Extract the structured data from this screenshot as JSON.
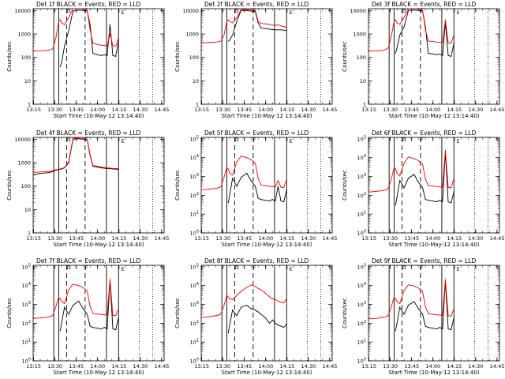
{
  "common": {
    "xlabel": "Start Time (10-May-12 13:14:40)",
    "ylabel": "Counts/sec",
    "x_ticks": [
      "13:15",
      "13:30",
      "13:45",
      "14:00",
      "14:15",
      "14:30",
      "14:45"
    ],
    "x_tick_minutes": [
      0.33,
      15.33,
      30.33,
      45.33,
      60.33,
      75.33,
      90.33
    ],
    "xlim_minutes": [
      0,
      92
    ],
    "markers_solid_minutes": [
      14.5,
      18.0,
      51.5,
      60.0
    ],
    "markers_dashed_minutes": [
      23.5,
      36.5
    ],
    "markers_dotted_minutes": [
      74.5,
      84.0
    ],
    "series_colors": {
      "events": "#000000",
      "lld": "#ff0000"
    },
    "overlay_letter_1": "D",
    "overlay_letter_2": "F",
    "overlay_letter_3": "E"
  },
  "chart_data": [
    {
      "type": "line",
      "title": "Det 1f  BLACK = Events, RED = LLD",
      "ylim": [
        1,
        12000
      ],
      "yscale": "log",
      "y_ticks": [
        "1",
        "10",
        "100",
        "1000",
        "10000"
      ],
      "y_tick_values": [
        1,
        10,
        100,
        1000,
        10000
      ],
      "x": [
        0,
        5,
        10,
        13,
        14,
        16,
        18,
        19,
        20,
        22,
        25,
        28,
        32,
        35,
        38,
        40,
        42,
        45,
        48,
        50,
        52,
        54,
        56,
        58,
        60
      ],
      "series": [
        {
          "name": "BLACK = Events",
          "values": [
            null,
            null,
            null,
            null,
            null,
            null,
            null,
            40,
            60,
            300,
            1400,
            9500,
            10500,
            10000,
            9500,
            2500,
            150,
            130,
            120,
            130,
            120,
            2500,
            120,
            110,
            500
          ]
        },
        {
          "name": "RED = LLD",
          "values": [
            180,
            190,
            200,
            220,
            250,
            700,
            3500,
            4000,
            3000,
            2500,
            5000,
            12000,
            12000,
            11500,
            10000,
            1500,
            400,
            360,
            330,
            320,
            300,
            1000,
            320,
            300,
            700
          ]
        }
      ]
    },
    {
      "type": "line",
      "title": "Det 2f  BLACK = Events, RED = LLD",
      "ylim": [
        1,
        12000
      ],
      "yscale": "log",
      "y_ticks": [
        "1",
        "10",
        "100",
        "1000",
        "10000"
      ],
      "y_tick_values": [
        1,
        10,
        100,
        1000,
        10000
      ],
      "x": [
        0,
        5,
        10,
        13,
        14,
        16,
        18,
        19,
        20,
        22,
        25,
        28,
        32,
        35,
        38,
        40,
        42,
        45,
        48,
        50,
        52,
        54,
        56,
        58,
        60
      ],
      "series": [
        {
          "name": "BLACK = Events",
          "values": [
            null,
            null,
            null,
            null,
            null,
            null,
            null,
            500,
            550,
            900,
            3500,
            10000,
            10000,
            9500,
            9000,
            3000,
            1800,
            1700,
            1600,
            1550,
            1500,
            1500,
            1500,
            1450,
            1400
          ]
        },
        {
          "name": "RED = LLD",
          "values": [
            420,
            430,
            450,
            470,
            500,
            900,
            3500,
            4000,
            3500,
            3000,
            5000,
            11000,
            11000,
            10500,
            10000,
            3500,
            2800,
            2700,
            2500,
            2400,
            2300,
            2500,
            2200,
            2100,
            1800
          ]
        }
      ]
    },
    {
      "type": "line",
      "title": "Det 3f  BLACK = Events, RED = LLD",
      "ylim": [
        1,
        12000
      ],
      "yscale": "log",
      "y_ticks": [
        "1",
        "10",
        "100",
        "1000",
        "10000"
      ],
      "y_tick_values": [
        1,
        10,
        100,
        1000,
        10000
      ],
      "x": [
        0,
        5,
        10,
        13,
        14,
        16,
        18,
        19,
        20,
        22,
        25,
        28,
        32,
        35,
        38,
        40,
        42,
        45,
        48,
        50,
        52,
        54,
        56,
        58,
        60
      ],
      "series": [
        {
          "name": "BLACK = Events",
          "values": [
            null,
            null,
            null,
            null,
            null,
            null,
            null,
            150,
            250,
            900,
            2000,
            10000,
            10500,
            10000,
            9500,
            2000,
            150,
            140,
            130,
            140,
            120,
            3000,
            120,
            110,
            400
          ]
        },
        {
          "name": "RED = LLD",
          "values": [
            180,
            190,
            200,
            230,
            260,
            800,
            3500,
            4000,
            3000,
            2600,
            5000,
            12000,
            12000,
            11500,
            10000,
            1500,
            500,
            480,
            450,
            440,
            420,
            4000,
            420,
            400,
            900
          ]
        }
      ]
    },
    {
      "type": "line",
      "title": "Det 4f  BLACK = Events, RED = LLD",
      "ylim": [
        1,
        12000
      ],
      "yscale": "log",
      "y_ticks": [
        "1",
        "10",
        "100",
        "1000",
        "10000"
      ],
      "y_tick_values": [
        1,
        10,
        100,
        1000,
        10000
      ],
      "x": [
        0,
        5,
        10,
        13,
        14,
        16,
        18,
        19,
        20,
        22,
        25,
        28,
        32,
        35,
        38,
        40,
        42,
        45,
        48,
        50,
        52,
        54,
        56,
        58,
        60
      ],
      "series": [
        {
          "name": "BLACK = Events",
          "values": [
            300,
            350,
            370,
            400,
            420,
            480,
            500,
            520,
            540,
            600,
            1000,
            10000,
            10500,
            10000,
            9500,
            2000,
            700,
            650,
            600,
            580,
            560,
            550,
            540,
            530,
            520
          ]
        },
        {
          "name": "RED = LLD",
          "values": [
            380,
            400,
            420,
            440,
            460,
            500,
            520,
            540,
            560,
            620,
            1100,
            11000,
            11000,
            10500,
            10000,
            2200,
            750,
            700,
            650,
            620,
            600,
            580,
            570,
            560,
            550
          ]
        }
      ]
    },
    {
      "type": "line",
      "title": "Det 5f  BLACK = Events, RED = LLD",
      "ylim": [
        1,
        120000
      ],
      "yscale": "log",
      "y_ticks": [
        "10^0",
        "10^1",
        "10^2",
        "10^3",
        "10^4",
        "10^5"
      ],
      "y_tick_values": [
        1,
        10,
        100,
        1000,
        10000,
        100000
      ],
      "x": [
        0,
        5,
        10,
        13,
        14,
        16,
        18,
        19,
        20,
        22,
        25,
        28,
        32,
        35,
        38,
        40,
        42,
        45,
        48,
        50,
        52,
        54,
        56,
        58,
        60
      ],
      "series": [
        {
          "name": "BLACK = Events",
          "values": [
            null,
            null,
            null,
            null,
            null,
            null,
            null,
            40,
            100,
            800,
            300,
            900,
            1500,
            600,
            300,
            70,
            60,
            55,
            50,
            60,
            50,
            300,
            50,
            45,
            200
          ]
        },
        {
          "name": "RED = LLD",
          "values": [
            200,
            210,
            230,
            260,
            300,
            900,
            3000,
            2500,
            1500,
            1200,
            6000,
            12000,
            10000,
            8000,
            5000,
            800,
            350,
            330,
            300,
            290,
            280,
            600,
            270,
            260,
            700
          ]
        }
      ]
    },
    {
      "type": "line",
      "title": "Det 6f  BLACK = Events, RED = LLD",
      "ylim": [
        1,
        120000
      ],
      "yscale": "log",
      "y_ticks": [
        "10^0",
        "10^1",
        "10^2",
        "10^3",
        "10^4",
        "10^5"
      ],
      "y_tick_values": [
        1,
        10,
        100,
        1000,
        10000,
        100000
      ],
      "x": [
        0,
        5,
        10,
        13,
        14,
        16,
        18,
        19,
        20,
        22,
        25,
        28,
        32,
        35,
        38,
        40,
        42,
        45,
        48,
        50,
        52,
        54,
        56,
        58,
        60
      ],
      "series": [
        {
          "name": "BLACK = Events",
          "values": [
            null,
            null,
            null,
            null,
            null,
            null,
            null,
            30,
            80,
            600,
            250,
            800,
            1300,
            500,
            250,
            60,
            55,
            50,
            45,
            55,
            45,
            20000,
            45,
            40,
            150
          ]
        },
        {
          "name": "RED = LLD",
          "values": [
            150,
            160,
            180,
            200,
            250,
            700,
            3000,
            2500,
            1500,
            1100,
            5000,
            11000,
            9000,
            7000,
            4500,
            700,
            330,
            310,
            290,
            280,
            270,
            25000,
            260,
            250,
            800
          ]
        }
      ]
    },
    {
      "type": "line",
      "title": "Det 7f  BLACK = Events, RED = LLD",
      "ylim": [
        1,
        120000
      ],
      "yscale": "log",
      "y_ticks": [
        "10^0",
        "10^1",
        "10^2",
        "10^3",
        "10^4",
        "10^5"
      ],
      "y_tick_values": [
        1,
        10,
        100,
        1000,
        10000,
        100000
      ],
      "x": [
        0,
        5,
        10,
        13,
        14,
        16,
        18,
        19,
        20,
        22,
        25,
        28,
        32,
        35,
        38,
        40,
        42,
        45,
        48,
        50,
        52,
        54,
        56,
        58,
        60
      ],
      "series": [
        {
          "name": "BLACK = Events",
          "values": [
            null,
            null,
            null,
            null,
            null,
            null,
            null,
            40,
            100,
            700,
            300,
            900,
            1500,
            600,
            300,
            70,
            60,
            55,
            50,
            60,
            50,
            18000,
            50,
            45,
            200
          ]
        },
        {
          "name": "RED = LLD",
          "values": [
            180,
            190,
            210,
            240,
            280,
            800,
            2500,
            2000,
            1500,
            1100,
            6000,
            12000,
            10000,
            8000,
            5000,
            800,
            330,
            310,
            290,
            280,
            270,
            22000,
            260,
            250,
            600
          ]
        }
      ]
    },
    {
      "type": "line",
      "title": "Det 8f  BLACK = Events, RED = LLD",
      "ylim": [
        1,
        120000
      ],
      "yscale": "log",
      "y_ticks": [
        "10^0",
        "10^1",
        "10^2",
        "10^3",
        "10^4",
        "10^5"
      ],
      "y_tick_values": [
        1,
        10,
        100,
        1000,
        10000,
        100000
      ],
      "x": [
        0,
        5,
        10,
        13,
        14,
        16,
        18,
        19,
        20,
        22,
        25,
        28,
        32,
        35,
        38,
        40,
        42,
        45,
        48,
        50,
        52,
        54,
        56,
        58,
        60
      ],
      "series": [
        {
          "name": "BLACK = Events",
          "values": [
            null,
            null,
            null,
            null,
            null,
            null,
            null,
            30,
            80,
            500,
            250,
            700,
            900,
            600,
            500,
            400,
            300,
            200,
            100,
            150,
            100,
            80,
            70,
            60,
            90
          ]
        },
        {
          "name": "RED = LLD",
          "values": [
            200,
            220,
            250,
            280,
            350,
            900,
            3000,
            2500,
            2000,
            1800,
            3000,
            5000,
            8000,
            11000,
            9000,
            7000,
            6000,
            4000,
            2500,
            2000,
            1800,
            1500,
            1300,
            1200,
            2000
          ]
        }
      ]
    },
    {
      "type": "line",
      "title": "Det 9f  BLACK = Events, RED = LLD",
      "ylim": [
        1,
        120000
      ],
      "yscale": "log",
      "y_ticks": [
        "10^0",
        "10^1",
        "10^2",
        "10^3",
        "10^4",
        "10^5"
      ],
      "y_tick_values": [
        1,
        10,
        100,
        1000,
        10000,
        100000
      ],
      "x": [
        0,
        5,
        10,
        13,
        14,
        16,
        18,
        19,
        20,
        22,
        25,
        28,
        32,
        35,
        38,
        40,
        42,
        45,
        48,
        50,
        52,
        54,
        56,
        58,
        60
      ],
      "series": [
        {
          "name": "BLACK = Events",
          "values": [
            null,
            null,
            null,
            null,
            null,
            null,
            null,
            40,
            100,
            700,
            300,
            900,
            1400,
            600,
            300,
            70,
            60,
            55,
            50,
            60,
            50,
            17000,
            50,
            45,
            200
          ]
        },
        {
          "name": "RED = LLD",
          "values": [
            170,
            180,
            200,
            230,
            270,
            750,
            2500,
            2000,
            1500,
            1100,
            5500,
            11000,
            9500,
            7500,
            4800,
            750,
            320,
            300,
            280,
            270,
            260,
            21000,
            250,
            240,
            600
          ]
        }
      ]
    }
  ]
}
